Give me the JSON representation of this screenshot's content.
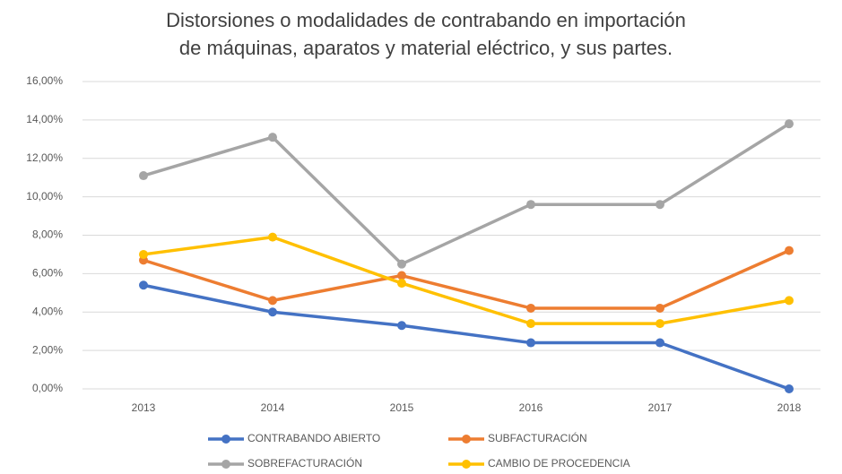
{
  "chart_data": {
    "type": "line",
    "title": [
      "Distorsiones o modalidades de contrabando en importación",
      "de máquinas, aparatos y material eléctrico, y sus partes."
    ],
    "categories": [
      "2013",
      "2014",
      "2015",
      "2016",
      "2017",
      "2018"
    ],
    "series": [
      {
        "name": "CONTRABANDO ABIERTO",
        "color": "#4472c4",
        "values": [
          5.4,
          4.0,
          3.3,
          2.4,
          2.4,
          0
        ]
      },
      {
        "name": "SUBFACTURACIÓN",
        "color": "#ed7d31",
        "values": [
          6.7,
          4.6,
          5.9,
          4.2,
          4.2,
          7.2
        ]
      },
      {
        "name": "SOBREFACTURACIÓN",
        "color": "#a5a5a5",
        "values": [
          11.1,
          13.1,
          6.5,
          9.6,
          9.6,
          13.8
        ]
      },
      {
        "name": "CAMBIO DE PROCEDENCIA",
        "color": "#ffc000",
        "values": [
          7.0,
          7.9,
          5.5,
          3.4,
          3.4,
          4.6
        ]
      }
    ],
    "ylim": [
      0,
      16
    ],
    "yticks": [
      {
        "value": 0,
        "label": "0,00%"
      },
      {
        "value": 2,
        "label": "2,00%"
      },
      {
        "value": 4,
        "label": "4,00%"
      },
      {
        "value": 6,
        "label": "6,00%"
      },
      {
        "value": 8,
        "label": "8,00%"
      },
      {
        "value": 10,
        "label": "10,00%"
      },
      {
        "value": 12,
        "label": "12,00%"
      },
      {
        "value": 14,
        "label": "14,00%"
      },
      {
        "value": 16,
        "label": "16,00%"
      }
    ],
    "grid": true,
    "legend": "bottom"
  }
}
